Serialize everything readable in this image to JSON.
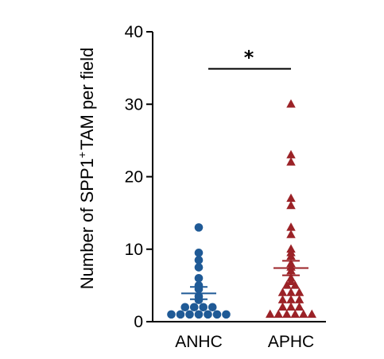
{
  "chart_data": {
    "type": "scatter",
    "categories": [
      "ANHC",
      "APHC"
    ],
    "ylabel": {
      "main": "Number of SPP1",
      "sup": "+",
      "rest": "TAM per field"
    },
    "ylim": [
      0,
      40
    ],
    "yticks": [
      0,
      10,
      20,
      30,
      40
    ],
    "grid": false,
    "series": [
      {
        "category": "ANHC",
        "marker": "circle",
        "color": "#1f5a96",
        "mean": 3.9,
        "sem_low": 3.1,
        "sem_high": 4.8,
        "values": [
          13,
          9.5,
          8.5,
          7.5,
          6,
          5,
          4.5,
          3.5,
          3,
          2,
          2,
          2,
          2,
          1,
          1,
          1,
          1,
          1,
          1,
          1
        ]
      },
      {
        "category": "APHC",
        "marker": "triangle",
        "color": "#9b2227",
        "mean": 7.4,
        "sem_low": 6.4,
        "sem_high": 8.4,
        "values": [
          30,
          23,
          22,
          17,
          16,
          13,
          12,
          10,
          9.5,
          9,
          8,
          7.5,
          7,
          6,
          5.5,
          5,
          5,
          4,
          4,
          4,
          3,
          3,
          3,
          2,
          2,
          2,
          1,
          1,
          1,
          1,
          1,
          1
        ]
      }
    ],
    "annotations": [
      {
        "text": "*",
        "between": [
          "ANHC",
          "APHC"
        ],
        "y": 35
      }
    ]
  }
}
